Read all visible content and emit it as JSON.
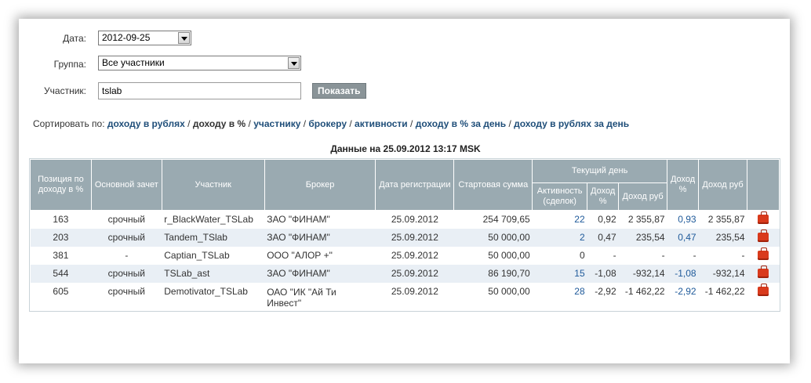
{
  "form": {
    "date_label": "Дата:",
    "date_value": "2012-09-25",
    "group_label": "Группа:",
    "group_value": "Все участники",
    "member_label": "Участник:",
    "member_value": "tslab",
    "show_button": "Показать"
  },
  "sort": {
    "prefix": "Сортировать по: ",
    "by_rub": "доходу в рублях",
    "by_pct": "доходу в %",
    "by_member": "участнику",
    "by_broker": "брокеру",
    "by_activity": "активности",
    "by_pct_day": "доходу в % за день",
    "by_rub_day": "доходу в рублях за день",
    "sep": " / "
  },
  "caption": "Данные на 25.09.2012 13:17 MSK",
  "headers": {
    "position": "Позиция по доходу в %",
    "main_account": "Основной зачет",
    "member": "Участник",
    "broker": "Брокер",
    "reg_date": "Дата регистрации",
    "start_sum": "Стартовая сумма",
    "current_day": "Текущий день",
    "activity": "Активность (сделок)",
    "day_income_pct": "Доход %",
    "day_income_rub": "Доход руб",
    "income_pct": "Доход %",
    "income_rub": "Доход руб"
  },
  "rows": [
    {
      "pos": "163",
      "main": "срочный",
      "member": "r_BlackWater_TSLab",
      "broker": "ЗАО \"ФИНАМ\"",
      "date": "25.09.2012",
      "start": "254 709,65",
      "activity": "22",
      "day_pct": "0,92",
      "day_rub": "2 355,87",
      "pct": "0,93",
      "rub": "2 355,87"
    },
    {
      "pos": "203",
      "main": "срочный",
      "member": "Tandem_TSlab",
      "broker": "ЗАО \"ФИНАМ\"",
      "date": "25.09.2012",
      "start": "50 000,00",
      "activity": "2",
      "day_pct": "0,47",
      "day_rub": "235,54",
      "pct": "0,47",
      "rub": "235,54"
    },
    {
      "pos": "381",
      "main": "-",
      "member": "Captian_TSLab",
      "broker": "ООО \"АЛОР +\"",
      "date": "25.09.2012",
      "start": "50 000,00",
      "activity": "0",
      "day_pct": "-",
      "day_rub": "-",
      "pct": "-",
      "rub": "-"
    },
    {
      "pos": "544",
      "main": "срочный",
      "member": "TSLab_ast",
      "broker": "ЗАО \"ФИНАМ\"",
      "date": "25.09.2012",
      "start": "86 190,70",
      "activity": "15",
      "day_pct": "-1,08",
      "day_rub": "-932,14",
      "pct": "-1,08",
      "rub": "-932,14"
    },
    {
      "pos": "605",
      "main": "срочный",
      "member": "Demotivator_TSLab",
      "broker": "ОАО \"ИК \"Ай Ти Инвест\"",
      "date": "25.09.2012",
      "start": "50 000,00",
      "activity": "28",
      "day_pct": "-2,92",
      "day_rub": "-1 462,22",
      "pct": "-2,92",
      "rub": "-1 462,22"
    }
  ],
  "colors": {
    "header_bg": "#9aaab1",
    "link": "#1f4e79",
    "row_alt": "#e9eff5",
    "button": "#8a9498"
  },
  "icons": {
    "row_action": "portfolio-bag-icon"
  }
}
